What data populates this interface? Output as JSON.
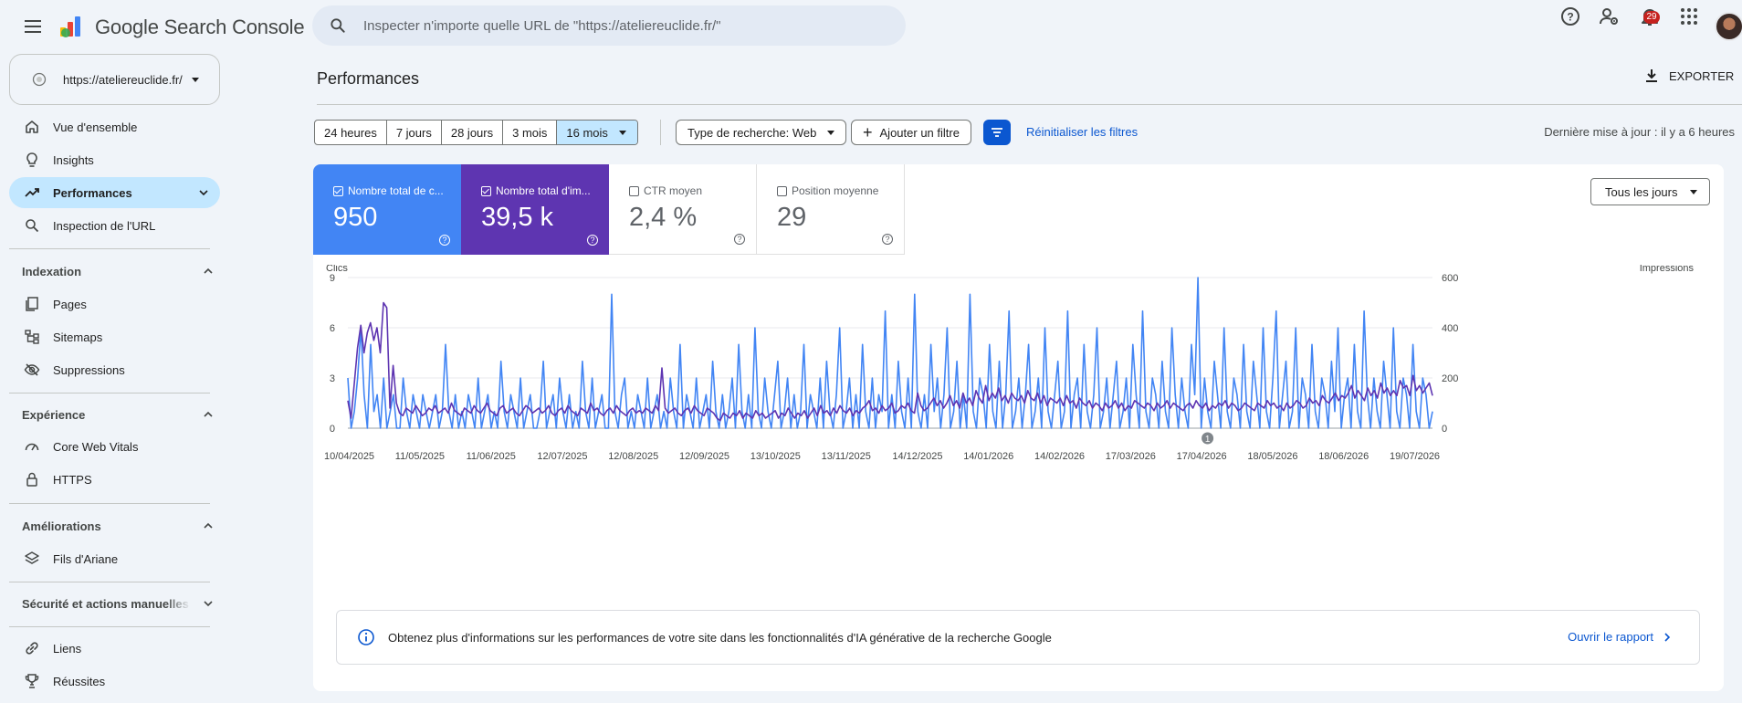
{
  "app": {
    "title": "Google Search Console"
  },
  "search": {
    "placeholder": "Inspecter n'importe quelle URL de \"https://ateliereuclide.fr/\""
  },
  "header_icons": [
    "help-icon",
    "manage-users-icon",
    "notifications-icon",
    "apps-grid-icon"
  ],
  "notifications": {
    "count": "29"
  },
  "property": {
    "url": "https://ateliereuclide.fr/"
  },
  "sidebar": {
    "items_top": [
      {
        "label": "Vue d'ensemble",
        "icon": "home-icon"
      },
      {
        "label": "Insights",
        "icon": "lightbulb-icon"
      },
      {
        "label": "Performances",
        "icon": "trending-up-icon",
        "active": true
      },
      {
        "label": "Inspection de l'URL",
        "icon": "search-icon"
      }
    ],
    "sections": [
      {
        "title": "Indexation",
        "items": [
          {
            "label": "Pages",
            "icon": "pages-icon"
          },
          {
            "label": "Sitemaps",
            "icon": "sitemap-icon"
          },
          {
            "label": "Suppressions",
            "icon": "visibility-off-icon"
          }
        ]
      },
      {
        "title": "Expérience",
        "items": [
          {
            "label": "Core Web Vitals",
            "icon": "gauge-icon"
          },
          {
            "label": "HTTPS",
            "icon": "lock-icon"
          }
        ]
      },
      {
        "title": "Améliorations",
        "items": [
          {
            "label": "Fils d'Ariane",
            "icon": "layers-icon"
          }
        ]
      },
      {
        "title": "Sécurité et actions manuelles",
        "items": []
      }
    ],
    "items_bottom": [
      {
        "label": "Liens",
        "icon": "link-icon"
      },
      {
        "label": "Réussites",
        "icon": "trophy-icon"
      }
    ]
  },
  "page": {
    "title": "Performances",
    "export_label": "EXPORTER",
    "last_update": "Dernière mise à jour : il y a 6 heures"
  },
  "filters": {
    "date_ranges": [
      "24 heures",
      "7 jours",
      "28 jours",
      "3 mois",
      "16 mois"
    ],
    "selected_range": "16 mois",
    "search_type": "Type de recherche: Web",
    "add_filter": "Ajouter un filtre",
    "reset": "Réinitialiser les filtres"
  },
  "metrics": [
    {
      "label": "Nombre total de c...",
      "value": "950",
      "checked": true,
      "color": "#4285f4"
    },
    {
      "label": "Nombre total d'im...",
      "value": "39,5 k",
      "checked": true,
      "color": "#5e35b1"
    },
    {
      "label": "CTR moyen",
      "value": "2,4 %",
      "checked": false
    },
    {
      "label": "Position moyenne",
      "value": "29",
      "checked": false
    }
  ],
  "days_select": "Tous les jours",
  "chart_data": {
    "type": "line",
    "left_axis_label": "Clics",
    "right_axis_label": "Impressions",
    "left_ticks": [
      0,
      3,
      6,
      9
    ],
    "right_ticks": [
      0,
      200,
      400,
      600
    ],
    "ylim_left": [
      0,
      9
    ],
    "ylim_right": [
      0,
      600
    ],
    "x_tick_labels": [
      "10/04/2025",
      "11/05/2025",
      "11/06/2025",
      "12/07/2025",
      "12/08/2025",
      "12/09/2025",
      "13/10/2025",
      "13/11/2025",
      "14/12/2025",
      "14/01/2026",
      "14/02/2026",
      "17/03/2026",
      "17/04/2026",
      "18/05/2026",
      "18/06/2026",
      "19/07/2026"
    ],
    "annotation": {
      "label": "1",
      "date": "17/04/2026"
    },
    "series": [
      {
        "name": "Clics",
        "color": "#4285f4",
        "axis": "left",
        "values": [
          3,
          0,
          1,
          3,
          6,
          2,
          0,
          5,
          1,
          2,
          0,
          3,
          0,
          1,
          2,
          0,
          0,
          3,
          1,
          0,
          2,
          1,
          0,
          2,
          1,
          0,
          1,
          2,
          0,
          1,
          5,
          1,
          0,
          2,
          0,
          1,
          0,
          2,
          1,
          0,
          3,
          0,
          1,
          2,
          0,
          1,
          0,
          4,
          1,
          0,
          2,
          1,
          0,
          3,
          0,
          1,
          2,
          0,
          0,
          1,
          4,
          0,
          1,
          2,
          0,
          3,
          1,
          0,
          2,
          0,
          1,
          0,
          4,
          1,
          0,
          3,
          0,
          1,
          2,
          0,
          0,
          8,
          1,
          0,
          2,
          3,
          0,
          1,
          0,
          2,
          1,
          0,
          3,
          0,
          1,
          2,
          0,
          1,
          0,
          3,
          1,
          0,
          5,
          0,
          2,
          1,
          0,
          3,
          0,
          1,
          2,
          0,
          4,
          1,
          0,
          2,
          0,
          1,
          3,
          0,
          5,
          1,
          0,
          2,
          0,
          6,
          1,
          0,
          3,
          1,
          0,
          2,
          4,
          0,
          1,
          3,
          0,
          2,
          0,
          1,
          5,
          0,
          2,
          1,
          0,
          3,
          0,
          4,
          1,
          0,
          2,
          6,
          0,
          1,
          3,
          0,
          2,
          0,
          5,
          1,
          0,
          3,
          0,
          2,
          1,
          7,
          0,
          2,
          0,
          4,
          1,
          0,
          3,
          0,
          8,
          1,
          0,
          2,
          0,
          5,
          1,
          3,
          0,
          2,
          6,
          0,
          1,
          4,
          0,
          2,
          0,
          8,
          1,
          0,
          3,
          2,
          0,
          5,
          1,
          0,
          4,
          0,
          2,
          7,
          0,
          1,
          3,
          0,
          2,
          5,
          0,
          1,
          3,
          0,
          6,
          1,
          0,
          2,
          4,
          0,
          1,
          7,
          0,
          2,
          3,
          0,
          5,
          1,
          0,
          2,
          6,
          0,
          1,
          3,
          0,
          2,
          4,
          0,
          1,
          3,
          0,
          5,
          2,
          0,
          7,
          1,
          0,
          3,
          2,
          0,
          4,
          1,
          0,
          6,
          2,
          0,
          3,
          1,
          0,
          5,
          2,
          9,
          0,
          3,
          1,
          0,
          4,
          2,
          0,
          6,
          1,
          0,
          3,
          2,
          0,
          5,
          1,
          0,
          4,
          2,
          0,
          6,
          1,
          0,
          3,
          7,
          0,
          2,
          4,
          0,
          1,
          6,
          0,
          3,
          2,
          0,
          5,
          1,
          0,
          3,
          2,
          0,
          4,
          1,
          6,
          0,
          2,
          3,
          0,
          5,
          1,
          0,
          7,
          2,
          0,
          3,
          1,
          0,
          4,
          2,
          0,
          6,
          1,
          0,
          3,
          2,
          0,
          5,
          1,
          0,
          3,
          2,
          0,
          1
        ]
      },
      {
        "name": "Impressions",
        "color": "#5e35b1",
        "axis": "right",
        "values": [
          110,
          40,
          180,
          320,
          410,
          300,
          380,
          420,
          350,
          400,
          300,
          500,
          480,
          80,
          250,
          100,
          60,
          50,
          80,
          70,
          60,
          90,
          70,
          50,
          60,
          80,
          70,
          90,
          60,
          70,
          80,
          60,
          100,
          70,
          60,
          50,
          80,
          70,
          60,
          90,
          70,
          60,
          80,
          100,
          70,
          60,
          50,
          80,
          90,
          60,
          70,
          80,
          60,
          50,
          70,
          90,
          80,
          60,
          70,
          80,
          60,
          70,
          90,
          60,
          50,
          70,
          80,
          60,
          90,
          70,
          60,
          50,
          80,
          70,
          60,
          100,
          70,
          80,
          60,
          50,
          70,
          80,
          60,
          90,
          70,
          60,
          50,
          70,
          80,
          60,
          70,
          60,
          80,
          70,
          60,
          90,
          70,
          240,
          80,
          60,
          70,
          80,
          60,
          50,
          70,
          80,
          60,
          90,
          70,
          60,
          50,
          80,
          70,
          60,
          40,
          30,
          60,
          50,
          40,
          60,
          50,
          70,
          40,
          60,
          50,
          40,
          70,
          50,
          60,
          40,
          50,
          60,
          70,
          40,
          60,
          50,
          80,
          60,
          40,
          60,
          50,
          70,
          40,
          60,
          80,
          50,
          90,
          60,
          70,
          50,
          80,
          60,
          90,
          70,
          60,
          80,
          50,
          70,
          60,
          80,
          90,
          110,
          70,
          80,
          60,
          90,
          70,
          80,
          100,
          60,
          70,
          90,
          80,
          100,
          70,
          60,
          140,
          90,
          70,
          80,
          100,
          120,
          90,
          110,
          80,
          100,
          130,
          90,
          110,
          80,
          140,
          100,
          120,
          90,
          150,
          120,
          100,
          170,
          110,
          140,
          120,
          160,
          110,
          130,
          100,
          140,
          120,
          110,
          130,
          100,
          150,
          120,
          110,
          140,
          100,
          130,
          90,
          120,
          110,
          100,
          120,
          90,
          130,
          100,
          110,
          80,
          120,
          100,
          90,
          110,
          80,
          100,
          90,
          70,
          100,
          80,
          90,
          110,
          80,
          100,
          70,
          90,
          80,
          110,
          100,
          90,
          80,
          100,
          90,
          70,
          100,
          80,
          90,
          110,
          80,
          100,
          90,
          80,
          70,
          90,
          100,
          80,
          110,
          90,
          80,
          100,
          70,
          90,
          80,
          100,
          90,
          110,
          80,
          100,
          90,
          70,
          80,
          100,
          90,
          80,
          70,
          100,
          90,
          80,
          110,
          90,
          100,
          80,
          90,
          70,
          100,
          80,
          90,
          110,
          100,
          80,
          90,
          120,
          100,
          110,
          90,
          130,
          110,
          100,
          120,
          140,
          110,
          130,
          120,
          140,
          170,
          120,
          150,
          130,
          110,
          160,
          130,
          150,
          120,
          180,
          140,
          160,
          130,
          150,
          130,
          190,
          160,
          170,
          130,
          210,
          150,
          170,
          140,
          160,
          180,
          130
        ]
      }
    ]
  },
  "ai_banner": {
    "text": "Obtenez plus d'informations sur les performances de votre site dans les fonctionnalités d'IA générative de la recherche Google",
    "link": "Ouvrir le rapport"
  }
}
